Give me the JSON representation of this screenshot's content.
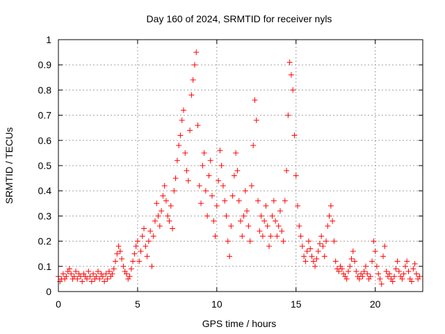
{
  "chart_data": {
    "type": "scatter",
    "title": "Day 160 of 2024, SRMTID for receiver nyls",
    "xlabel": "GPS time / hours",
    "ylabel": "SRMTID / TECUs",
    "xlim": [
      0,
      23
    ],
    "ylim": [
      0,
      1
    ],
    "x_ticks": [
      0,
      5,
      10,
      15,
      20
    ],
    "x_tick_labels": [
      "0",
      "5",
      "10",
      "15",
      "20"
    ],
    "y_ticks": [
      0,
      0.1,
      0.2,
      0.3,
      0.4,
      0.5,
      0.6,
      0.7,
      0.8,
      0.9,
      1
    ],
    "y_tick_labels": [
      "0",
      "0.1",
      "0.2",
      "0.3",
      "0.4",
      "0.5",
      "0.6",
      "0.7",
      "0.8",
      "0.9",
      "1"
    ],
    "grid": true,
    "marker": "+",
    "color": "#ff0000",
    "series": [
      {
        "name": "SRMTID",
        "points": [
          [
            0.0,
            0.06
          ],
          [
            0.1,
            0.04
          ],
          [
            0.2,
            0.05
          ],
          [
            0.3,
            0.07
          ],
          [
            0.4,
            0.05
          ],
          [
            0.5,
            0.06
          ],
          [
            0.6,
            0.08
          ],
          [
            0.7,
            0.09
          ],
          [
            0.8,
            0.07
          ],
          [
            0.9,
            0.05
          ],
          [
            1.0,
            0.06
          ],
          [
            1.1,
            0.08
          ],
          [
            1.2,
            0.05
          ],
          [
            1.3,
            0.07
          ],
          [
            1.4,
            0.06
          ],
          [
            1.5,
            0.04
          ],
          [
            1.6,
            0.07
          ],
          [
            1.7,
            0.06
          ],
          [
            1.8,
            0.05
          ],
          [
            1.9,
            0.08
          ],
          [
            2.0,
            0.06
          ],
          [
            2.1,
            0.04
          ],
          [
            2.2,
            0.07
          ],
          [
            2.3,
            0.05
          ],
          [
            2.4,
            0.06
          ],
          [
            2.5,
            0.08
          ],
          [
            2.6,
            0.05
          ],
          [
            2.7,
            0.07
          ],
          [
            2.8,
            0.06
          ],
          [
            2.9,
            0.04
          ],
          [
            3.0,
            0.07
          ],
          [
            3.1,
            0.05
          ],
          [
            3.2,
            0.08
          ],
          [
            3.3,
            0.06
          ],
          [
            3.4,
            0.07
          ],
          [
            3.5,
            0.09
          ],
          [
            3.6,
            0.12
          ],
          [
            3.7,
            0.15
          ],
          [
            3.8,
            0.18
          ],
          [
            3.9,
            0.16
          ],
          [
            4.0,
            0.13
          ],
          [
            4.1,
            0.1
          ],
          [
            4.2,
            0.08
          ],
          [
            4.3,
            0.07
          ],
          [
            4.4,
            0.05
          ],
          [
            4.5,
            0.06
          ],
          [
            4.6,
            0.09
          ],
          [
            4.7,
            0.12
          ],
          [
            4.8,
            0.15
          ],
          [
            4.9,
            0.18
          ],
          [
            5.0,
            0.2
          ],
          [
            5.1,
            0.12
          ],
          [
            5.2,
            0.16
          ],
          [
            5.3,
            0.22
          ],
          [
            5.4,
            0.25
          ],
          [
            5.5,
            0.18
          ],
          [
            5.6,
            0.14
          ],
          [
            5.7,
            0.2
          ],
          [
            5.8,
            0.24
          ],
          [
            5.9,
            0.1
          ],
          [
            6.0,
            0.22
          ],
          [
            6.1,
            0.28
          ],
          [
            6.2,
            0.35
          ],
          [
            6.3,
            0.3
          ],
          [
            6.4,
            0.26
          ],
          [
            6.5,
            0.32
          ],
          [
            6.6,
            0.38
          ],
          [
            6.7,
            0.42
          ],
          [
            6.8,
            0.36
          ],
          [
            6.9,
            0.3
          ],
          [
            7.0,
            0.28
          ],
          [
            7.1,
            0.34
          ],
          [
            7.2,
            0.25
          ],
          [
            7.3,
            0.4
          ],
          [
            7.4,
            0.45
          ],
          [
            7.5,
            0.52
          ],
          [
            7.6,
            0.58
          ],
          [
            7.7,
            0.62
          ],
          [
            7.8,
            0.68
          ],
          [
            7.9,
            0.72
          ],
          [
            8.0,
            0.55
          ],
          [
            8.1,
            0.48
          ],
          [
            8.2,
            0.44
          ],
          [
            8.3,
            0.64
          ],
          [
            8.4,
            0.78
          ],
          [
            8.5,
            0.84
          ],
          [
            8.6,
            0.9
          ],
          [
            8.7,
            0.95
          ],
          [
            8.8,
            0.66
          ],
          [
            8.9,
            0.42
          ],
          [
            9.0,
            0.35
          ],
          [
            9.1,
            0.5
          ],
          [
            9.2,
            0.55
          ],
          [
            9.3,
            0.4
          ],
          [
            9.4,
            0.3
          ],
          [
            9.5,
            0.46
          ],
          [
            9.6,
            0.52
          ],
          [
            9.7,
            0.38
          ],
          [
            9.8,
            0.28
          ],
          [
            9.9,
            0.22
          ],
          [
            10.0,
            0.34
          ],
          [
            10.1,
            0.44
          ],
          [
            10.2,
            0.56
          ],
          [
            10.3,
            0.5
          ],
          [
            10.4,
            0.42
          ],
          [
            10.5,
            0.36
          ],
          [
            10.6,
            0.3
          ],
          [
            10.7,
            0.2
          ],
          [
            10.8,
            0.14
          ],
          [
            10.9,
            0.26
          ],
          [
            11.0,
            0.38
          ],
          [
            11.1,
            0.46
          ],
          [
            11.2,
            0.55
          ],
          [
            11.3,
            0.48
          ],
          [
            11.4,
            0.36
          ],
          [
            11.5,
            0.28
          ],
          [
            11.6,
            0.22
          ],
          [
            11.7,
            0.3
          ],
          [
            11.8,
            0.4
          ],
          [
            11.9,
            0.32
          ],
          [
            12.0,
            0.26
          ],
          [
            12.1,
            0.2
          ],
          [
            12.2,
            0.42
          ],
          [
            12.3,
            0.58
          ],
          [
            12.4,
            0.76
          ],
          [
            12.5,
            0.68
          ],
          [
            12.6,
            0.36
          ],
          [
            12.7,
            0.24
          ],
          [
            12.8,
            0.3
          ],
          [
            12.9,
            0.22
          ],
          [
            13.0,
            0.28
          ],
          [
            13.1,
            0.34
          ],
          [
            13.2,
            0.26
          ],
          [
            13.3,
            0.18
          ],
          [
            13.4,
            0.22
          ],
          [
            13.5,
            0.3
          ],
          [
            13.6,
            0.36
          ],
          [
            13.7,
            0.28
          ],
          [
            13.8,
            0.22
          ],
          [
            13.9,
            0.26
          ],
          [
            14.0,
            0.32
          ],
          [
            14.1,
            0.24
          ],
          [
            14.2,
            0.2
          ],
          [
            14.3,
            0.36
          ],
          [
            14.4,
            0.48
          ],
          [
            14.5,
            0.7
          ],
          [
            14.6,
            0.91
          ],
          [
            14.7,
            0.86
          ],
          [
            14.8,
            0.8
          ],
          [
            14.9,
            0.62
          ],
          [
            15.0,
            0.46
          ],
          [
            15.1,
            0.34
          ],
          [
            15.2,
            0.26
          ],
          [
            15.3,
            0.22
          ],
          [
            15.4,
            0.18
          ],
          [
            15.5,
            0.14
          ],
          [
            15.6,
            0.12
          ],
          [
            15.7,
            0.16
          ],
          [
            15.8,
            0.2
          ],
          [
            15.9,
            0.17
          ],
          [
            16.0,
            0.14
          ],
          [
            16.1,
            0.12
          ],
          [
            16.2,
            0.1
          ],
          [
            16.3,
            0.13
          ],
          [
            16.4,
            0.16
          ],
          [
            16.5,
            0.19
          ],
          [
            16.6,
            0.22
          ],
          [
            16.7,
            0.18
          ],
          [
            16.8,
            0.14
          ],
          [
            16.9,
            0.2
          ],
          [
            17.0,
            0.26
          ],
          [
            17.1,
            0.3
          ],
          [
            17.2,
            0.34
          ],
          [
            17.3,
            0.28
          ],
          [
            17.4,
            0.2
          ],
          [
            17.5,
            0.12
          ],
          [
            17.6,
            0.09
          ],
          [
            17.7,
            0.08
          ],
          [
            17.8,
            0.1
          ],
          [
            17.9,
            0.09
          ],
          [
            18.0,
            0.07
          ],
          [
            18.1,
            0.06
          ],
          [
            18.2,
            0.05
          ],
          [
            18.3,
            0.08
          ],
          [
            18.4,
            0.1
          ],
          [
            18.5,
            0.13
          ],
          [
            18.6,
            0.16
          ],
          [
            18.7,
            0.12
          ],
          [
            18.8,
            0.08
          ],
          [
            18.9,
            0.06
          ],
          [
            19.0,
            0.05
          ],
          [
            19.1,
            0.07
          ],
          [
            19.2,
            0.06
          ],
          [
            19.3,
            0.08
          ],
          [
            19.4,
            0.1
          ],
          [
            19.5,
            0.07
          ],
          [
            19.6,
            0.05
          ],
          [
            19.7,
            0.06
          ],
          [
            19.8,
            0.12
          ],
          [
            19.9,
            0.2
          ],
          [
            20.0,
            0.16
          ],
          [
            20.1,
            0.1
          ],
          [
            20.2,
            0.07
          ],
          [
            20.3,
            0.05
          ],
          [
            20.4,
            0.03
          ],
          [
            20.5,
            0.14
          ],
          [
            20.6,
            0.18
          ],
          [
            20.7,
            0.08
          ],
          [
            20.8,
            0.06
          ],
          [
            20.9,
            0.07
          ],
          [
            21.0,
            0.05
          ],
          [
            21.1,
            0.04
          ],
          [
            21.2,
            0.06
          ],
          [
            21.3,
            0.09
          ],
          [
            21.4,
            0.12
          ],
          [
            21.5,
            0.08
          ],
          [
            21.6,
            0.06
          ],
          [
            21.7,
            0.05
          ],
          [
            21.8,
            0.07
          ],
          [
            21.9,
            0.1
          ],
          [
            22.0,
            0.12
          ],
          [
            22.1,
            0.08
          ],
          [
            22.2,
            0.05
          ],
          [
            22.3,
            0.04
          ],
          [
            22.4,
            0.09
          ],
          [
            22.5,
            0.11
          ],
          [
            22.6,
            0.07
          ],
          [
            22.7,
            0.05
          ],
          [
            22.8,
            0.06
          ]
        ]
      }
    ]
  }
}
